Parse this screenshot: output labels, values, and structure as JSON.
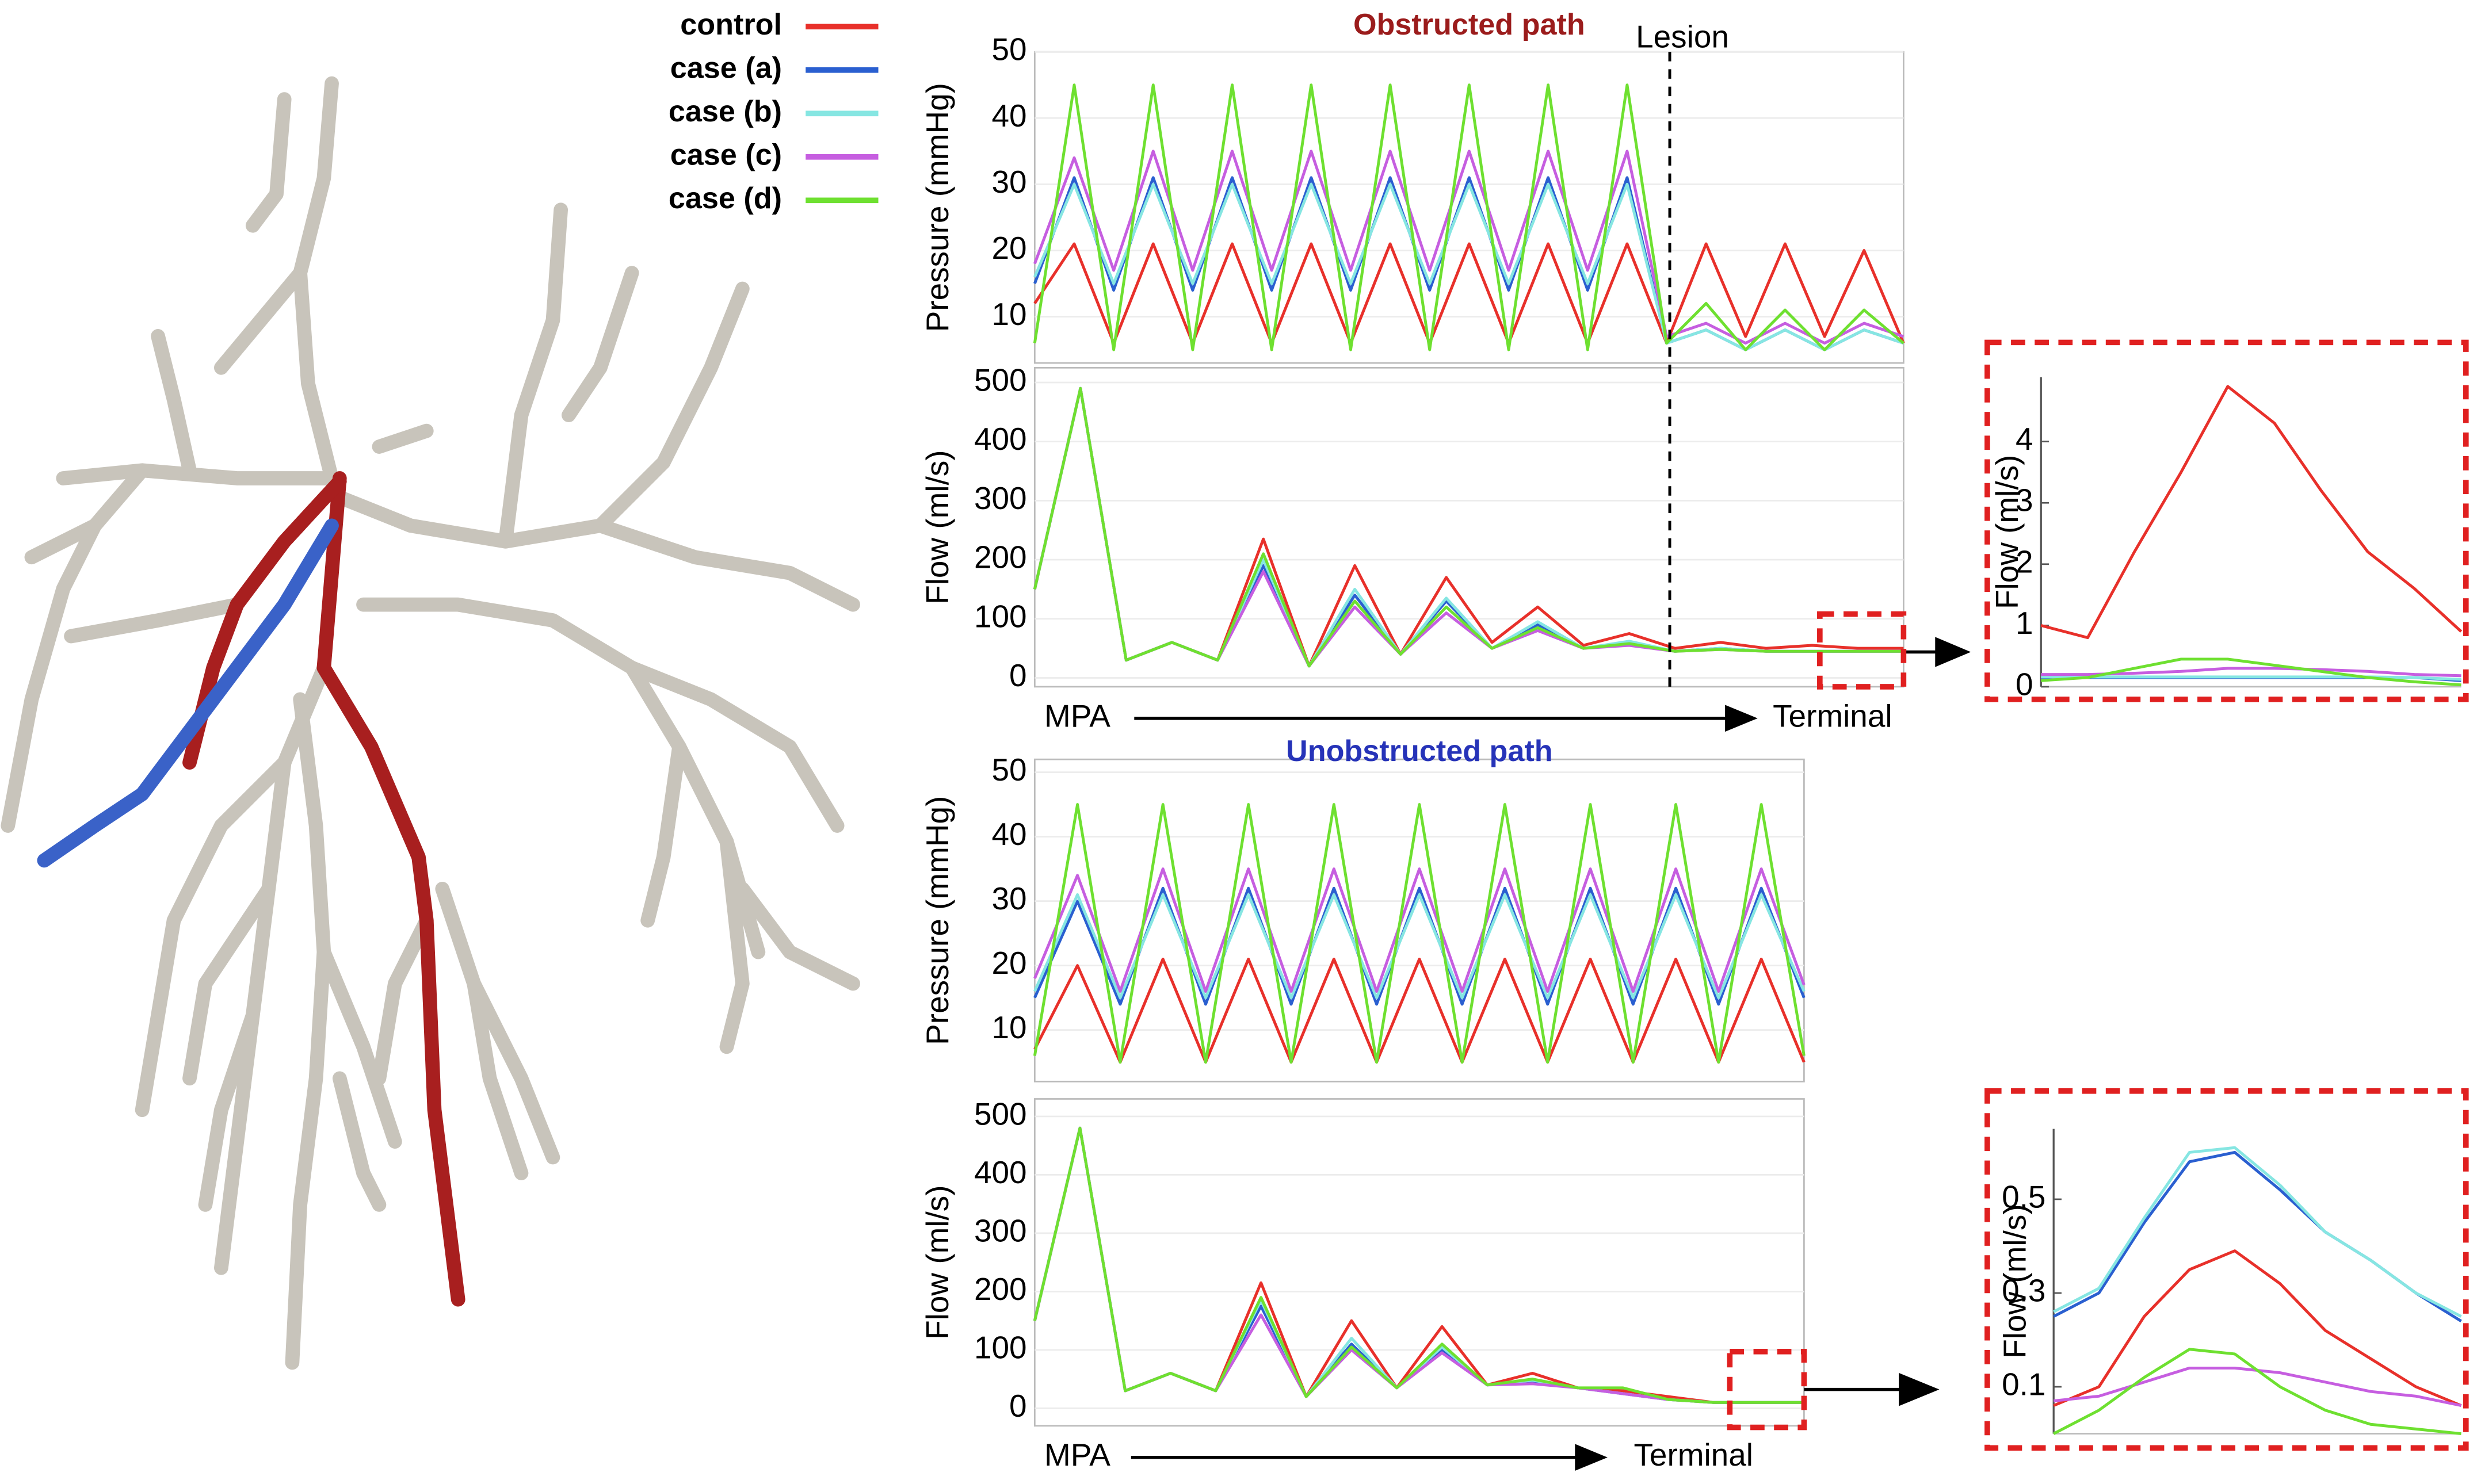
{
  "legend": [
    {
      "name": "control",
      "color": "#e8302a"
    },
    {
      "name": "case (a)",
      "color": "#2a5fd0"
    },
    {
      "name": "case (b)",
      "color": "#86e6e2"
    },
    {
      "name": "case (c)",
      "color": "#c65ee0"
    },
    {
      "name": "case (d)",
      "color": "#6ee030"
    }
  ],
  "chart_data": [
    {
      "type": "line",
      "title": "Obstructed path",
      "title_color": "#9b1c1c",
      "annotation": "Lesion",
      "y_label": "Pressure (mmHg)",
      "ylim": [
        3,
        50
      ],
      "yticks": [
        10,
        20,
        30,
        40,
        50
      ],
      "grid": true,
      "series": [
        {
          "color": "#e8302a",
          "values": [
            12,
            21,
            6,
            21,
            6,
            21,
            6,
            21,
            6,
            21,
            6,
            21,
            6,
            21,
            6,
            21,
            6,
            21,
            7,
            21,
            7,
            20,
            6
          ]
        },
        {
          "color": "#2a5fd0",
          "values": [
            15,
            31,
            14,
            31,
            14,
            31,
            14,
            31,
            14,
            31,
            14,
            31,
            14,
            31,
            14,
            31,
            6,
            8,
            5,
            8,
            5,
            8,
            6
          ]
        },
        {
          "color": "#86e6e2",
          "values": [
            16,
            30,
            15,
            30,
            15,
            30,
            15,
            30,
            15,
            30,
            15,
            30,
            15,
            30,
            15,
            30,
            6,
            8,
            5,
            8,
            5,
            8,
            6
          ]
        },
        {
          "color": "#c65ee0",
          "values": [
            18,
            34,
            17,
            35,
            17,
            35,
            17,
            35,
            17,
            35,
            17,
            35,
            17,
            35,
            17,
            35,
            7,
            9,
            6,
            9,
            6,
            9,
            7
          ]
        },
        {
          "color": "#6ee030",
          "values": [
            6,
            45,
            5,
            45,
            5,
            45,
            5,
            45,
            5,
            45,
            5,
            45,
            5,
            45,
            5,
            45,
            6,
            12,
            5,
            11,
            5,
            11,
            6
          ]
        }
      ]
    },
    {
      "type": "line",
      "y_label": "Flow (ml/s)",
      "x_start_label": "MPA",
      "x_end_label": "Terminal",
      "ylim": [
        -15,
        525
      ],
      "yticks": [
        0,
        100,
        200,
        300,
        400,
        500
      ],
      "grid": true,
      "series": [
        {
          "color": "#e8302a",
          "values": [
            150,
            490,
            30,
            60,
            30,
            235,
            20,
            190,
            40,
            170,
            60,
            120,
            55,
            75,
            50,
            60,
            50,
            55,
            50,
            50
          ]
        },
        {
          "color": "#2a5fd0",
          "values": [
            150,
            490,
            30,
            60,
            30,
            190,
            20,
            140,
            40,
            130,
            50,
            90,
            50,
            60,
            45,
            50,
            45,
            45,
            45,
            45
          ]
        },
        {
          "color": "#86e6e2",
          "values": [
            150,
            490,
            30,
            60,
            30,
            200,
            20,
            150,
            40,
            135,
            50,
            95,
            50,
            62,
            45,
            50,
            45,
            45,
            45,
            45
          ]
        },
        {
          "color": "#c65ee0",
          "values": [
            150,
            490,
            30,
            60,
            30,
            180,
            20,
            120,
            40,
            110,
            50,
            80,
            50,
            55,
            45,
            48,
            45,
            45,
            45,
            45
          ]
        },
        {
          "color": "#6ee030",
          "values": [
            150,
            490,
            30,
            60,
            30,
            210,
            20,
            130,
            40,
            120,
            50,
            85,
            50,
            58,
            45,
            48,
            45,
            45,
            45,
            45
          ]
        }
      ]
    },
    {
      "type": "line",
      "y_label": "Flow (ml/s)",
      "ylim": [
        0,
        5.05
      ],
      "yticks": [
        0,
        1,
        2,
        3,
        4
      ],
      "grid": false,
      "series": [
        {
          "color": "#e8302a",
          "values": [
            1,
            0.8,
            2.2,
            3.5,
            4.9,
            4.3,
            3.2,
            2.2,
            1.6,
            0.9
          ]
        },
        {
          "color": "#2a5fd0",
          "values": [
            0.15,
            0.15,
            0.15,
            0.15,
            0.15,
            0.15,
            0.15,
            0.15,
            0.15,
            0.1
          ]
        },
        {
          "color": "#86e6e2",
          "values": [
            0.16,
            0.16,
            0.16,
            0.16,
            0.16,
            0.16,
            0.16,
            0.16,
            0.15,
            0.12
          ]
        },
        {
          "color": "#c65ee0",
          "values": [
            0.2,
            0.2,
            0.22,
            0.25,
            0.3,
            0.3,
            0.28,
            0.25,
            0.2,
            0.18
          ]
        },
        {
          "color": "#6ee030",
          "values": [
            0.1,
            0.15,
            0.3,
            0.45,
            0.45,
            0.35,
            0.25,
            0.15,
            0.08,
            0.03
          ]
        }
      ]
    },
    {
      "type": "line",
      "title": "Unobstructed path",
      "title_color": "#2633b8",
      "y_label": "Pressure (mmHg)",
      "ylim": [
        2,
        52
      ],
      "yticks": [
        10,
        20,
        30,
        40,
        50
      ],
      "grid": true,
      "series": [
        {
          "color": "#e8302a",
          "values": [
            7,
            20,
            5,
            21,
            5,
            21,
            5,
            21,
            5,
            21,
            5,
            21,
            5,
            21,
            5,
            21,
            5,
            21,
            5
          ]
        },
        {
          "color": "#2a5fd0",
          "values": [
            15,
            30,
            14,
            32,
            14,
            32,
            14,
            32,
            14,
            32,
            14,
            32,
            14,
            32,
            14,
            32,
            14,
            32,
            15
          ]
        },
        {
          "color": "#86e6e2",
          "values": [
            16,
            31,
            15,
            31,
            15,
            31,
            15,
            31,
            15,
            31,
            15,
            31,
            15,
            31,
            15,
            31,
            15,
            31,
            16
          ]
        },
        {
          "color": "#c65ee0",
          "values": [
            18,
            34,
            16,
            35,
            16,
            35,
            16,
            35,
            16,
            35,
            16,
            35,
            16,
            35,
            16,
            35,
            16,
            35,
            17
          ]
        },
        {
          "color": "#6ee030",
          "values": [
            6,
            45,
            5,
            45,
            5,
            45,
            5,
            45,
            5,
            45,
            5,
            45,
            5,
            45,
            5,
            45,
            5,
            45,
            6
          ]
        }
      ]
    },
    {
      "type": "line",
      "y_label": "Flow (ml/s)",
      "x_start_label": "MPA",
      "x_end_label": "Terminal",
      "ylim": [
        -30,
        530
      ],
      "yticks": [
        0,
        100,
        200,
        300,
        400,
        500
      ],
      "grid": true,
      "series": [
        {
          "color": "#e8302a",
          "values": [
            150,
            480,
            30,
            60,
            30,
            215,
            20,
            150,
            35,
            140,
            40,
            60,
            35,
            30,
            20,
            10,
            10,
            10
          ]
        },
        {
          "color": "#2a5fd0",
          "values": [
            150,
            480,
            30,
            60,
            30,
            175,
            20,
            110,
            35,
            100,
            40,
            45,
            35,
            25,
            15,
            10,
            10,
            10
          ]
        },
        {
          "color": "#86e6e2",
          "values": [
            150,
            480,
            30,
            60,
            30,
            185,
            20,
            120,
            35,
            105,
            40,
            48,
            35,
            25,
            15,
            10,
            10,
            10
          ]
        },
        {
          "color": "#c65ee0",
          "values": [
            150,
            480,
            30,
            60,
            30,
            160,
            20,
            100,
            35,
            95,
            40,
            42,
            35,
            25,
            15,
            10,
            10,
            10
          ]
        },
        {
          "color": "#6ee030",
          "values": [
            150,
            480,
            30,
            60,
            30,
            190,
            20,
            105,
            35,
            110,
            40,
            50,
            35,
            35,
            15,
            10,
            10,
            10
          ]
        }
      ]
    },
    {
      "type": "line",
      "y_label": "Flow (ml/s)",
      "ylim": [
        0,
        0.65
      ],
      "yticks": [
        0.1,
        0.3,
        0.5
      ],
      "grid": false,
      "series": [
        {
          "color": "#e8302a",
          "values": [
            0.06,
            0.1,
            0.25,
            0.35,
            0.39,
            0.32,
            0.22,
            0.16,
            0.1,
            0.06
          ]
        },
        {
          "color": "#2a5fd0",
          "values": [
            0.25,
            0.3,
            0.45,
            0.58,
            0.6,
            0.52,
            0.43,
            0.37,
            0.3,
            0.24
          ]
        },
        {
          "color": "#86e6e2",
          "values": [
            0.26,
            0.31,
            0.46,
            0.6,
            0.61,
            0.53,
            0.43,
            0.37,
            0.3,
            0.25
          ]
        },
        {
          "color": "#c65ee0",
          "values": [
            0.07,
            0.08,
            0.11,
            0.14,
            0.14,
            0.13,
            0.11,
            0.09,
            0.08,
            0.06
          ]
        },
        {
          "color": "#6ee030",
          "values": [
            0,
            0.05,
            0.12,
            0.18,
            0.17,
            0.1,
            0.05,
            0.02,
            0.01,
            0
          ]
        }
      ]
    }
  ]
}
